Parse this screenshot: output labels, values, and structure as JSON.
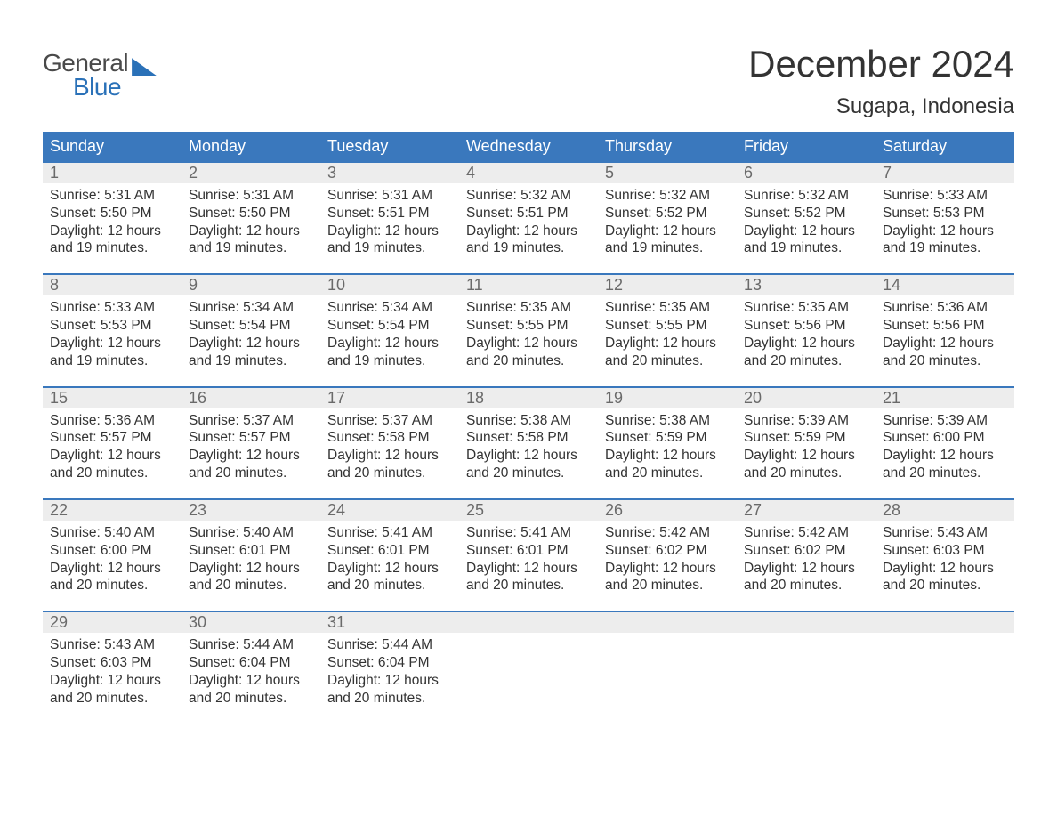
{
  "brand": {
    "line1": "General",
    "line2": "Blue",
    "color_text": "#4a4a4a",
    "color_accent": "#2a71b8"
  },
  "title": "December 2024",
  "location": "Sugapa, Indonesia",
  "colors": {
    "header_bg": "#3a78bd",
    "header_text": "#ffffff",
    "band_bg": "#ededed",
    "daynum_text": "#6a6a6a",
    "body_text": "#333333",
    "rule": "#3a78bd",
    "page_bg": "#ffffff"
  },
  "typography": {
    "title_fontsize": 42,
    "location_fontsize": 24,
    "header_fontsize": 18,
    "body_fontsize": 15.5
  },
  "day_headers": [
    "Sunday",
    "Monday",
    "Tuesday",
    "Wednesday",
    "Thursday",
    "Friday",
    "Saturday"
  ],
  "weeks": [
    [
      {
        "n": "1",
        "sunrise": "Sunrise: 5:31 AM",
        "sunset": "Sunset: 5:50 PM",
        "d1": "Daylight: 12 hours",
        "d2": "and 19 minutes."
      },
      {
        "n": "2",
        "sunrise": "Sunrise: 5:31 AM",
        "sunset": "Sunset: 5:50 PM",
        "d1": "Daylight: 12 hours",
        "d2": "and 19 minutes."
      },
      {
        "n": "3",
        "sunrise": "Sunrise: 5:31 AM",
        "sunset": "Sunset: 5:51 PM",
        "d1": "Daylight: 12 hours",
        "d2": "and 19 minutes."
      },
      {
        "n": "4",
        "sunrise": "Sunrise: 5:32 AM",
        "sunset": "Sunset: 5:51 PM",
        "d1": "Daylight: 12 hours",
        "d2": "and 19 minutes."
      },
      {
        "n": "5",
        "sunrise": "Sunrise: 5:32 AM",
        "sunset": "Sunset: 5:52 PM",
        "d1": "Daylight: 12 hours",
        "d2": "and 19 minutes."
      },
      {
        "n": "6",
        "sunrise": "Sunrise: 5:32 AM",
        "sunset": "Sunset: 5:52 PM",
        "d1": "Daylight: 12 hours",
        "d2": "and 19 minutes."
      },
      {
        "n": "7",
        "sunrise": "Sunrise: 5:33 AM",
        "sunset": "Sunset: 5:53 PM",
        "d1": "Daylight: 12 hours",
        "d2": "and 19 minutes."
      }
    ],
    [
      {
        "n": "8",
        "sunrise": "Sunrise: 5:33 AM",
        "sunset": "Sunset: 5:53 PM",
        "d1": "Daylight: 12 hours",
        "d2": "and 19 minutes."
      },
      {
        "n": "9",
        "sunrise": "Sunrise: 5:34 AM",
        "sunset": "Sunset: 5:54 PM",
        "d1": "Daylight: 12 hours",
        "d2": "and 19 minutes."
      },
      {
        "n": "10",
        "sunrise": "Sunrise: 5:34 AM",
        "sunset": "Sunset: 5:54 PM",
        "d1": "Daylight: 12 hours",
        "d2": "and 19 minutes."
      },
      {
        "n": "11",
        "sunrise": "Sunrise: 5:35 AM",
        "sunset": "Sunset: 5:55 PM",
        "d1": "Daylight: 12 hours",
        "d2": "and 20 minutes."
      },
      {
        "n": "12",
        "sunrise": "Sunrise: 5:35 AM",
        "sunset": "Sunset: 5:55 PM",
        "d1": "Daylight: 12 hours",
        "d2": "and 20 minutes."
      },
      {
        "n": "13",
        "sunrise": "Sunrise: 5:35 AM",
        "sunset": "Sunset: 5:56 PM",
        "d1": "Daylight: 12 hours",
        "d2": "and 20 minutes."
      },
      {
        "n": "14",
        "sunrise": "Sunrise: 5:36 AM",
        "sunset": "Sunset: 5:56 PM",
        "d1": "Daylight: 12 hours",
        "d2": "and 20 minutes."
      }
    ],
    [
      {
        "n": "15",
        "sunrise": "Sunrise: 5:36 AM",
        "sunset": "Sunset: 5:57 PM",
        "d1": "Daylight: 12 hours",
        "d2": "and 20 minutes."
      },
      {
        "n": "16",
        "sunrise": "Sunrise: 5:37 AM",
        "sunset": "Sunset: 5:57 PM",
        "d1": "Daylight: 12 hours",
        "d2": "and 20 minutes."
      },
      {
        "n": "17",
        "sunrise": "Sunrise: 5:37 AM",
        "sunset": "Sunset: 5:58 PM",
        "d1": "Daylight: 12 hours",
        "d2": "and 20 minutes."
      },
      {
        "n": "18",
        "sunrise": "Sunrise: 5:38 AM",
        "sunset": "Sunset: 5:58 PM",
        "d1": "Daylight: 12 hours",
        "d2": "and 20 minutes."
      },
      {
        "n": "19",
        "sunrise": "Sunrise: 5:38 AM",
        "sunset": "Sunset: 5:59 PM",
        "d1": "Daylight: 12 hours",
        "d2": "and 20 minutes."
      },
      {
        "n": "20",
        "sunrise": "Sunrise: 5:39 AM",
        "sunset": "Sunset: 5:59 PM",
        "d1": "Daylight: 12 hours",
        "d2": "and 20 minutes."
      },
      {
        "n": "21",
        "sunrise": "Sunrise: 5:39 AM",
        "sunset": "Sunset: 6:00 PM",
        "d1": "Daylight: 12 hours",
        "d2": "and 20 minutes."
      }
    ],
    [
      {
        "n": "22",
        "sunrise": "Sunrise: 5:40 AM",
        "sunset": "Sunset: 6:00 PM",
        "d1": "Daylight: 12 hours",
        "d2": "and 20 minutes."
      },
      {
        "n": "23",
        "sunrise": "Sunrise: 5:40 AM",
        "sunset": "Sunset: 6:01 PM",
        "d1": "Daylight: 12 hours",
        "d2": "and 20 minutes."
      },
      {
        "n": "24",
        "sunrise": "Sunrise: 5:41 AM",
        "sunset": "Sunset: 6:01 PM",
        "d1": "Daylight: 12 hours",
        "d2": "and 20 minutes."
      },
      {
        "n": "25",
        "sunrise": "Sunrise: 5:41 AM",
        "sunset": "Sunset: 6:01 PM",
        "d1": "Daylight: 12 hours",
        "d2": "and 20 minutes."
      },
      {
        "n": "26",
        "sunrise": "Sunrise: 5:42 AM",
        "sunset": "Sunset: 6:02 PM",
        "d1": "Daylight: 12 hours",
        "d2": "and 20 minutes."
      },
      {
        "n": "27",
        "sunrise": "Sunrise: 5:42 AM",
        "sunset": "Sunset: 6:02 PM",
        "d1": "Daylight: 12 hours",
        "d2": "and 20 minutes."
      },
      {
        "n": "28",
        "sunrise": "Sunrise: 5:43 AM",
        "sunset": "Sunset: 6:03 PM",
        "d1": "Daylight: 12 hours",
        "d2": "and 20 minutes."
      }
    ],
    [
      {
        "n": "29",
        "sunrise": "Sunrise: 5:43 AM",
        "sunset": "Sunset: 6:03 PM",
        "d1": "Daylight: 12 hours",
        "d2": "and 20 minutes."
      },
      {
        "n": "30",
        "sunrise": "Sunrise: 5:44 AM",
        "sunset": "Sunset: 6:04 PM",
        "d1": "Daylight: 12 hours",
        "d2": "and 20 minutes."
      },
      {
        "n": "31",
        "sunrise": "Sunrise: 5:44 AM",
        "sunset": "Sunset: 6:04 PM",
        "d1": "Daylight: 12 hours",
        "d2": "and 20 minutes."
      },
      null,
      null,
      null,
      null
    ]
  ]
}
